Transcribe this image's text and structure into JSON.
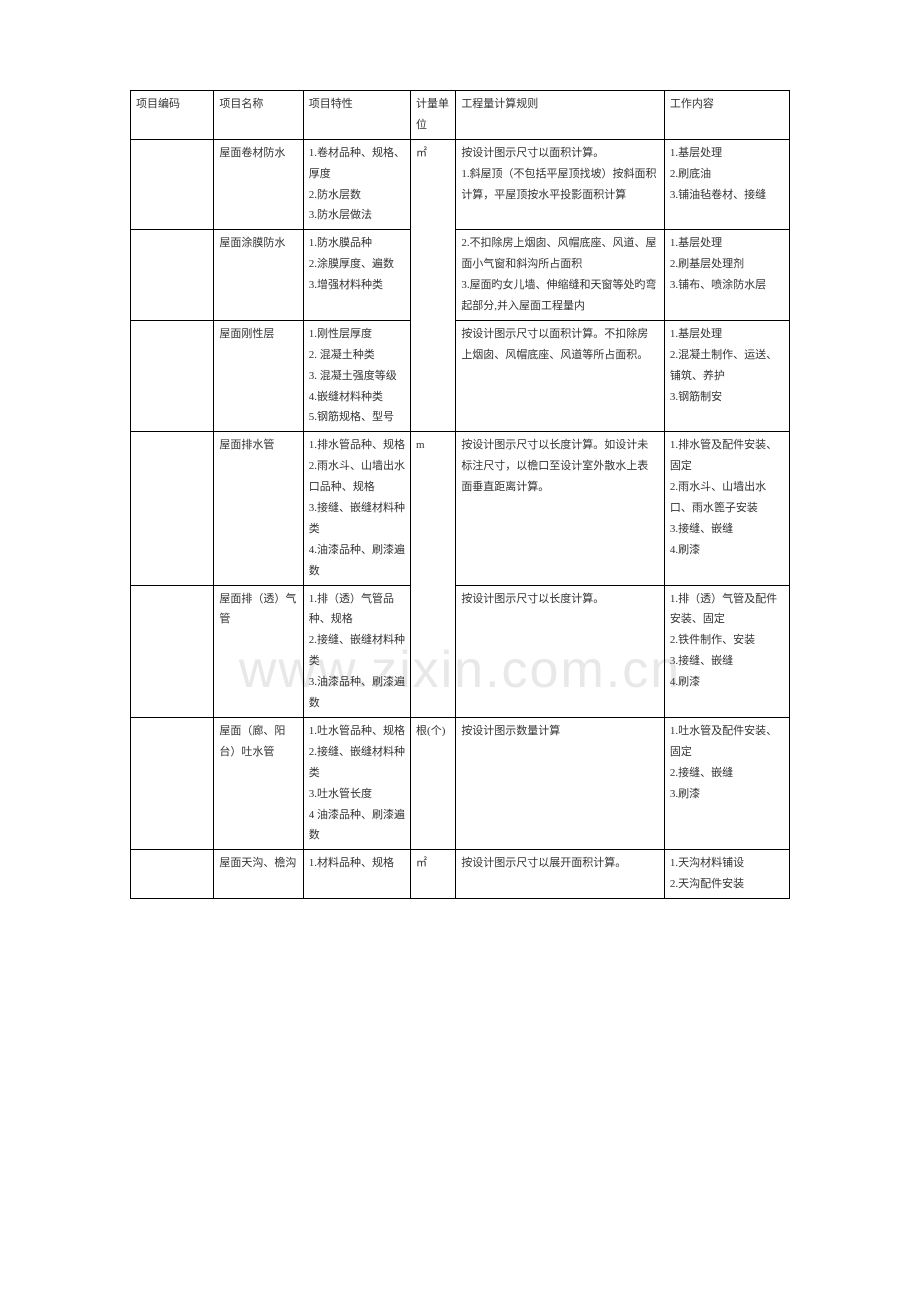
{
  "watermark": "www.zixin.com.cn",
  "table": {
    "columns": [
      "项目编码",
      "项目名称",
      "项目特性",
      "计量单位",
      "工程量计算规则",
      "工作内容"
    ],
    "rows": [
      {
        "code": "",
        "name": "屋面卷材防水",
        "feature": "1.卷材品种、规格、厚度\n2.防水层数\n3.防水层做法",
        "unit": "㎡",
        "rule": "按设计图示尺寸以面积计算。\n1.斜屋顶（不包括平屋顶找坡）按斜面积计算，平屋顶按水平投影面积计算",
        "work": "1.基层处理\n2.刷底油\n3.铺油毡卷材、接缝",
        "unit_rowspan": 3,
        "rule_continues": true
      },
      {
        "code": "",
        "name": "屋面涂膜防水",
        "feature": "1.防水膜品种\n2.涂膜厚度、遍数\n3.增强材料种类",
        "rule": "2.不扣除房上烟囱、风帽底座、风道、屋面小气窗和斜沟所占面积\n3.屋面旳女儿墙、伸缩缝和天窗等处旳弯起部分,并入屋面工程量内",
        "work": "1.基层处理\n2.刷基层处理剂\n3.铺布、喷涂防水层",
        "rule_continues": true
      },
      {
        "code": "",
        "name": "屋面刚性层",
        "feature": "1.刚性层厚度\n2. 混凝土种类\n3. 混凝土强度等级\n4.嵌缝材料种类\n5.钢筋规格、型号",
        "rule": "按设计图示尺寸以面积计算。不扣除房上烟囱、风帽底座、风道等所占面积。",
        "work": "1.基层处理\n2.混凝土制作、运送、铺筑、养护\n3.钢筋制安"
      },
      {
        "code": "",
        "name": "屋面排水管",
        "feature": "1.排水管品种、规格\n2.雨水斗、山墙出水口品种、规格\n3.接缝、嵌缝材料种类\n4.油漆品种、刷漆遍数",
        "unit": "m",
        "rule": "按设计图示尺寸以长度计算。如设计未标注尺寸，以檐口至设计室外散水上表面垂直距离计算。",
        "work": "1.排水管及配件安装、固定\n2.雨水斗、山墙出水口、雨水篦子安装\n3.接缝、嵌缝\n4.刷漆",
        "unit_rowspan": 2
      },
      {
        "code": "",
        "name": "屋面排（透）气管",
        "feature": "1.排（透）气管品种、规格\n2.接缝、嵌缝材料种类\n3.油漆品种、刷漆遍数",
        "rule": "按设计图示尺寸以长度计算。",
        "work": "1.排（透）气管及配件安装、固定\n2.铁件制作、安装\n3.接缝、嵌缝\n4.刷漆"
      },
      {
        "code": "",
        "name": "屋面（廊、阳台）吐水管",
        "feature": "1.吐水管品种、规格\n2.接缝、嵌缝材料种类\n3.吐水管长度\n4 油漆品种、刷漆遍数",
        "unit": "根(个)",
        "rule": "按设计图示数量计算",
        "work": "1.吐水管及配件安装、固定\n2.接缝、嵌缝\n3.刷漆"
      },
      {
        "code": "",
        "name": "屋面天沟、檐沟",
        "feature": "1.材料品种、规格",
        "unit": "㎡",
        "rule": "按设计图示尺寸以展开面积计算。",
        "work": "1.天沟材料铺设\n2.天沟配件安装"
      }
    ]
  }
}
